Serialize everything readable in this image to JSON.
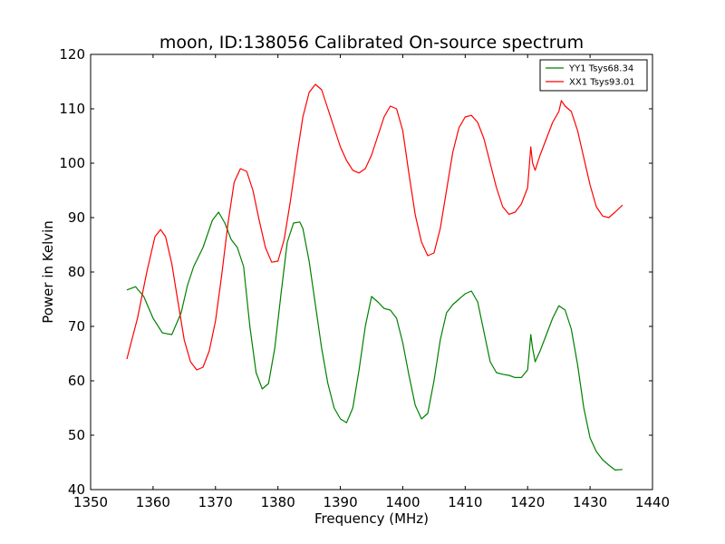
{
  "chart_data": {
    "type": "line",
    "title": "moon, ID:138056 Calibrated On-source spectrum",
    "xlabel": "Frequency (MHz)",
    "ylabel": "Power in Kelvin",
    "xlim": [
      1350,
      1440
    ],
    "ylim": [
      40,
      120
    ],
    "xticks": [
      1350,
      1360,
      1370,
      1380,
      1390,
      1400,
      1410,
      1420,
      1430,
      1440
    ],
    "yticks": [
      40,
      50,
      60,
      70,
      80,
      90,
      100,
      110,
      120
    ],
    "grid": false,
    "legend_position": "top-right",
    "series": [
      {
        "name": "YY1 Tsys68.34",
        "color": "#008000",
        "x": [
          1355.8,
          1357.2,
          1358.5,
          1360,
          1361.5,
          1363,
          1364.5,
          1365.5,
          1366.5,
          1368,
          1369.5,
          1370.5,
          1371.5,
          1372.5,
          1373.5,
          1374.5,
          1375.5,
          1376.5,
          1377.5,
          1378.5,
          1379.5,
          1380.5,
          1381.5,
          1382.5,
          1383.5,
          1384,
          1385,
          1386,
          1387,
          1388,
          1389,
          1390,
          1391,
          1392,
          1393,
          1394,
          1395,
          1396,
          1397,
          1398,
          1399,
          1400,
          1401,
          1402,
          1403,
          1404,
          1405,
          1406,
          1407,
          1408,
          1409,
          1410,
          1411,
          1412,
          1413,
          1414,
          1415,
          1416,
          1417,
          1418,
          1419,
          1420,
          1420.5,
          1420.8,
          1421.2,
          1422,
          1423,
          1424,
          1425,
          1426,
          1427,
          1428,
          1429,
          1430,
          1431,
          1432,
          1433,
          1434,
          1435.2
        ],
        "values": [
          76.7,
          77.3,
          75.5,
          71.5,
          68.8,
          68.5,
          72.5,
          77.5,
          81.0,
          84.5,
          89.5,
          91.0,
          89.0,
          86.0,
          84.5,
          81.0,
          70.0,
          61.5,
          58.5,
          59.5,
          66.0,
          76.0,
          85.5,
          89.0,
          89.2,
          88.0,
          82.0,
          74.0,
          66.0,
          59.5,
          55.0,
          53.0,
          52.3,
          55.0,
          62.0,
          70.0,
          75.5,
          74.5,
          73.3,
          73.0,
          71.5,
          67.0,
          61.0,
          55.5,
          53.0,
          54.0,
          60.0,
          67.5,
          72.5,
          74.0,
          75.0,
          76.0,
          76.5,
          74.5,
          69.0,
          63.5,
          61.5,
          61.2,
          61.0,
          60.6,
          60.6,
          62.0,
          68.5,
          66.0,
          63.5,
          65.5,
          68.5,
          71.5,
          73.8,
          73.0,
          69.5,
          63.0,
          55.0,
          49.5,
          47.0,
          45.5,
          44.5,
          43.6,
          43.7
        ]
      },
      {
        "name": "XX1 Tsys93.01",
        "color": "#ff0000",
        "x": [
          1355.8,
          1357.5,
          1359,
          1360.3,
          1361.2,
          1362,
          1363,
          1364,
          1365,
          1366,
          1367,
          1368,
          1369,
          1370,
          1371,
          1372,
          1373,
          1374,
          1375,
          1376,
          1377,
          1378,
          1379,
          1380,
          1381,
          1382,
          1383,
          1384,
          1385,
          1386,
          1387,
          1388,
          1389,
          1390,
          1391,
          1392,
          1393,
          1394,
          1395,
          1396,
          1397,
          1398,
          1399,
          1400,
          1401,
          1402,
          1403,
          1404,
          1405,
          1406,
          1407,
          1408,
          1409,
          1410,
          1411,
          1412,
          1413,
          1414,
          1415,
          1416,
          1417,
          1418,
          1419,
          1420,
          1420.5,
          1420.8,
          1421.2,
          1422,
          1423,
          1424,
          1425,
          1425.4,
          1426,
          1427,
          1428,
          1429,
          1430,
          1431,
          1432,
          1433,
          1434,
          1435.2
        ],
        "values": [
          64.0,
          71.5,
          80.0,
          86.5,
          87.8,
          86.5,
          81.5,
          74.5,
          67.5,
          63.5,
          62.0,
          62.5,
          65.5,
          71.0,
          79.5,
          89.0,
          96.5,
          99.0,
          98.5,
          95.0,
          89.5,
          84.5,
          81.8,
          82.0,
          86.0,
          93.0,
          101.0,
          108.5,
          113.0,
          114.5,
          113.5,
          110.0,
          106.5,
          103.0,
          100.5,
          98.7,
          98.2,
          99.0,
          101.5,
          105.0,
          108.5,
          110.5,
          110.0,
          106.0,
          98.0,
          90.5,
          85.5,
          83.0,
          83.5,
          88.0,
          95.0,
          102.0,
          106.5,
          108.5,
          108.8,
          107.5,
          104.5,
          100.0,
          95.5,
          92.0,
          90.6,
          91.0,
          92.5,
          95.5,
          103.0,
          100.0,
          98.7,
          101.5,
          104.5,
          107.5,
          109.5,
          111.5,
          110.5,
          109.5,
          106.0,
          101.0,
          96.0,
          92.0,
          90.3,
          90.0,
          91.0,
          92.3
        ]
      }
    ]
  }
}
